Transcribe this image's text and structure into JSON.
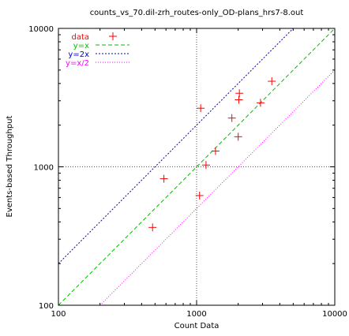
{
  "chart_data": {
    "type": "scatter",
    "title": "counts_vs_70.dil-zrh_routes-only_OD-plans_hrs7-8.out",
    "xlabel": "Count Data",
    "ylabel": "Events-based Throughput",
    "xscale": "log",
    "yscale": "log",
    "xlim": [
      100,
      10000
    ],
    "ylim": [
      100,
      10000
    ],
    "x_tick_labels": [
      "100",
      "1000",
      "10000"
    ],
    "y_tick_labels": [
      "100",
      "1000",
      "10000"
    ],
    "reference_lines_at": 1000,
    "grid": false,
    "legend_position": "top-left",
    "series": [
      {
        "name": "data",
        "kind": "points",
        "marker": "+",
        "color": "#ff0000",
        "points": [
          [
            480,
            365
          ],
          [
            580,
            820
          ],
          [
            1050,
            620
          ],
          [
            1070,
            2650
          ],
          [
            1170,
            1030
          ],
          [
            1370,
            1300
          ],
          [
            1800,
            2250
          ],
          [
            2000,
            1650
          ],
          [
            2020,
            3050
          ],
          [
            2040,
            3400
          ],
          [
            2900,
            2900
          ],
          [
            3500,
            4150
          ]
        ]
      },
      {
        "name": "y=x",
        "kind": "line",
        "factor": 1,
        "color": "#00c000",
        "dash": "5,3"
      },
      {
        "name": "y=2x",
        "kind": "line",
        "factor": 2,
        "color": "#0000c0",
        "dash": "2,2"
      },
      {
        "name": "y=x/2",
        "kind": "line",
        "factor": 0.5,
        "color": "#ff00ff",
        "dash": "1,2"
      }
    ]
  }
}
